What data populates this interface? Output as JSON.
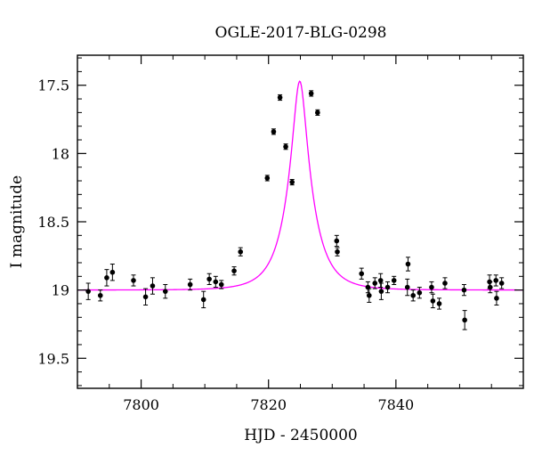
{
  "chart_data": {
    "type": "scatter",
    "title": "OGLE-2017-BLG-0298",
    "xlabel": "HJD - 2450000",
    "ylabel": "I magnitude",
    "xlim": [
      7790,
      7860
    ],
    "ylim": [
      19.72,
      17.28
    ],
    "y_inverted": true,
    "xticks": [
      7800,
      7820,
      7840
    ],
    "yticks": [
      17.5,
      18,
      18.5,
      19,
      19.5
    ],
    "xtick_labels": [
      "7800",
      "7820",
      "7840"
    ],
    "ytick_labels": [
      "17.5",
      "18",
      "18.5",
      "19",
      "19.5"
    ],
    "grid": false,
    "colors": {
      "points": "#000000",
      "model": "#ff00ff"
    },
    "series": [
      {
        "type": "scatter_with_errorbars",
        "points": [
          [
            7791.7,
            19.01,
            0.06
          ],
          [
            7793.6,
            19.04,
            0.04
          ],
          [
            7794.6,
            18.91,
            0.06
          ],
          [
            7795.5,
            18.87,
            0.06
          ],
          [
            7798.8,
            18.93,
            0.04
          ],
          [
            7800.7,
            19.05,
            0.06
          ],
          [
            7801.8,
            18.97,
            0.06
          ],
          [
            7803.8,
            19.01,
            0.05
          ],
          [
            7807.7,
            18.96,
            0.04
          ],
          [
            7809.8,
            19.07,
            0.06
          ],
          [
            7810.7,
            18.92,
            0.04
          ],
          [
            7811.7,
            18.94,
            0.04
          ],
          [
            7812.6,
            18.96,
            0.03
          ],
          [
            7814.6,
            18.86,
            0.03
          ],
          [
            7815.6,
            18.72,
            0.03
          ],
          [
            7819.8,
            18.18,
            0.02
          ],
          [
            7820.8,
            17.84,
            0.02
          ],
          [
            7821.8,
            17.59,
            0.02
          ],
          [
            7822.7,
            17.95,
            0.02
          ],
          [
            7823.7,
            18.21,
            0.02
          ],
          [
            7826.7,
            17.56,
            0.02
          ],
          [
            7827.7,
            17.7,
            0.02
          ],
          [
            7830.7,
            18.64,
            0.04
          ],
          [
            7830.8,
            18.72,
            0.03
          ],
          [
            7834.6,
            18.88,
            0.04
          ],
          [
            7835.6,
            18.98,
            0.04
          ],
          [
            7835.8,
            19.04,
            0.05
          ],
          [
            7836.7,
            18.95,
            0.04
          ],
          [
            7837.6,
            18.93,
            0.05
          ],
          [
            7837.7,
            19.01,
            0.06
          ],
          [
            7838.7,
            18.98,
            0.04
          ],
          [
            7839.7,
            18.93,
            0.03
          ],
          [
            7841.8,
            18.98,
            0.06
          ],
          [
            7841.9,
            18.81,
            0.05
          ],
          [
            7842.7,
            19.04,
            0.04
          ],
          [
            7843.7,
            19.02,
            0.04
          ],
          [
            7845.6,
            18.98,
            0.04
          ],
          [
            7845.8,
            19.08,
            0.05
          ],
          [
            7846.8,
            19.1,
            0.04
          ],
          [
            7847.7,
            18.95,
            0.04
          ],
          [
            7850.7,
            19.0,
            0.04
          ],
          [
            7850.8,
            19.22,
            0.07
          ],
          [
            7854.7,
            18.94,
            0.05
          ],
          [
            7854.8,
            18.98,
            0.04
          ],
          [
            7855.7,
            18.93,
            0.04
          ],
          [
            7855.8,
            19.06,
            0.05
          ],
          [
            7856.6,
            18.95,
            0.04
          ]
        ]
      },
      {
        "type": "model_curve",
        "peak_x": 7824.9,
        "peak_mag": 17.47,
        "baseline_mag": 19.0,
        "tE": 3.9
      }
    ]
  }
}
